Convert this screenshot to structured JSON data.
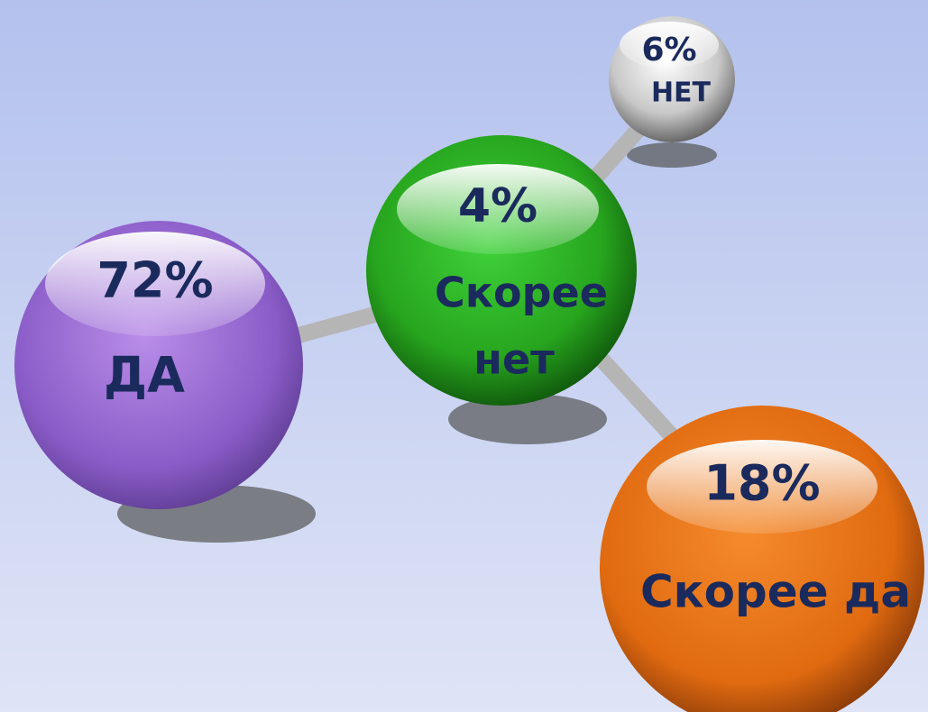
{
  "nodes": [
    {
      "value": "72%",
      "label": "ДА"
    },
    {
      "value": "4%",
      "label_lines": [
        "Скорее",
        "нет"
      ]
    },
    {
      "value": "6%",
      "label": "НЕТ"
    },
    {
      "value": "18%",
      "label": "Скорее да"
    }
  ]
}
